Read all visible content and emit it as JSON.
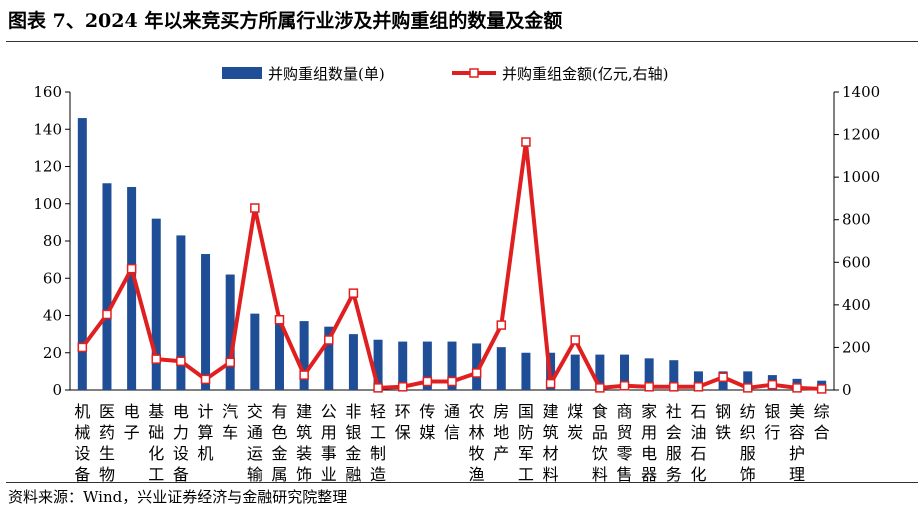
{
  "title": "图表 7、2024 年以来竞买方所属行业涉及并购重组的数量及金额",
  "source": "资料来源：Wind，兴业证券经济与金融研究院整理",
  "colors": {
    "bar": "#1F4E96",
    "line": "#E02020",
    "marker_fill": "#ffffff"
  },
  "chart_data": {
    "type": "bar",
    "categories": [
      "机械设备",
      "医药生物",
      "电子",
      "基础化工",
      "电力设备",
      "计算机",
      "汽车",
      "交通运输",
      "有色金属",
      "建筑装饰",
      "公用事业",
      "非银金融",
      "轻工制造",
      "环保",
      "传媒",
      "通信",
      "农林牧渔",
      "房地产",
      "国防军工",
      "建筑材料",
      "煤炭",
      "食品饮料",
      "商贸零售",
      "家用电器",
      "社会服务",
      "石油石化",
      "钢铁",
      "纺织服饰",
      "银行",
      "美容护理",
      "综合"
    ],
    "series": [
      {
        "name": "并购重组数量(单)",
        "type": "bar",
        "axis": "left",
        "values": [
          146,
          111,
          109,
          92,
          83,
          73,
          62,
          41,
          38,
          37,
          34,
          30,
          27,
          26,
          26,
          26,
          25,
          23,
          20,
          20,
          19,
          19,
          19,
          17,
          16,
          10,
          10,
          10,
          8,
          6,
          5
        ]
      },
      {
        "name": "并购重组金额(亿元,右轴)",
        "type": "line",
        "axis": "right",
        "values": [
          200,
          355,
          570,
          145,
          135,
          50,
          130,
          855,
          330,
          70,
          235,
          455,
          10,
          15,
          40,
          40,
          80,
          305,
          1165,
          30,
          235,
          10,
          20,
          15,
          15,
          15,
          60,
          10,
          25,
          10,
          5
        ]
      }
    ],
    "y_left": {
      "min": 0,
      "max": 160,
      "ticks": [
        0,
        20,
        40,
        60,
        80,
        100,
        120,
        140,
        160
      ]
    },
    "y_right": {
      "min": 0,
      "max": 1400,
      "ticks": [
        0,
        200,
        400,
        600,
        800,
        1000,
        1200,
        1400
      ]
    },
    "legend_position": "top"
  }
}
